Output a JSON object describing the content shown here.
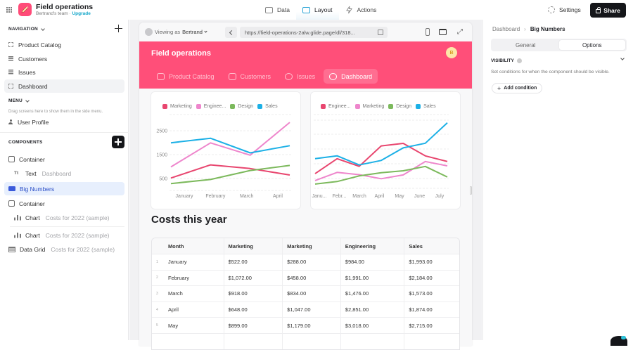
{
  "topbar": {
    "app_title": "Field operations",
    "team": "Bertrand's team",
    "separator": "·",
    "upgrade": "Upgrade",
    "tabs": [
      {
        "label": "Data",
        "icon": "table-icon"
      },
      {
        "label": "Layout",
        "icon": "layout-icon",
        "active": true
      },
      {
        "label": "Actions",
        "icon": "bolt-icon"
      }
    ],
    "settings": "Settings",
    "share": "Share"
  },
  "left": {
    "navigation_header": "NAVIGATION",
    "nav_items": [
      {
        "label": "Product Catalog",
        "icon": "dashed-square-icon"
      },
      {
        "label": "Customers",
        "icon": "list-icon"
      },
      {
        "label": "Issues",
        "icon": "list-icon"
      },
      {
        "label": "Dashboard",
        "icon": "dashed-square-icon",
        "selected": true
      }
    ],
    "menu_header": "MENU",
    "menu_hint": "Drag screens here to show them in the side menu.",
    "menu_items": [
      {
        "label": "User Profile",
        "icon": "user-icon"
      }
    ],
    "components_header": "COMPONENTS",
    "components": [
      {
        "label": "Container",
        "sub": "",
        "icon": "container-icon"
      },
      {
        "label": "Text",
        "sub": "Dashboard",
        "icon": "text-icon"
      },
      {
        "label": "Big Numbers",
        "sub": "",
        "icon": "big-numbers-icon",
        "selected": true
      },
      {
        "label": "Container",
        "sub": "",
        "icon": "container-icon"
      },
      {
        "label": "Chart",
        "sub": "Costs for 2022 (sample)",
        "icon": "chart-icon"
      },
      {
        "label": "Chart",
        "sub": "Costs for 2022 (sample)",
        "icon": "chart-icon"
      },
      {
        "label": "Data Grid",
        "sub": "Costs for 2022 (sample)",
        "icon": "grid-icon"
      }
    ]
  },
  "preview": {
    "viewing_as_prefix": "Viewing as",
    "viewing_as_user": "Bertrand",
    "url": "https://field-operations-2alw.glide.page/dl/318...",
    "app_title": "Field operations",
    "avatar_initial": "B",
    "app_tabs": [
      {
        "label": "Product Catalog",
        "icon": "book-icon"
      },
      {
        "label": "Customers",
        "icon": "inbox-icon"
      },
      {
        "label": "Issues",
        "icon": "pie-icon"
      },
      {
        "label": "Dashboard",
        "icon": "gauge-icon",
        "active": true
      }
    ],
    "section_title": "Costs this year",
    "table": {
      "columns": [
        "Month",
        "Marketing",
        "Marketing",
        "Engineering",
        "Sales"
      ],
      "rows": [
        {
          "n": "1",
          "cells": [
            "January",
            "$522.00",
            "$288.00",
            "$984.00",
            "$1,993.00"
          ]
        },
        {
          "n": "2",
          "cells": [
            "February",
            "$1,072.00",
            "$458.00",
            "$1,991.00",
            "$2,184.00"
          ]
        },
        {
          "n": "3",
          "cells": [
            "March",
            "$918.00",
            "$834.00",
            "$1,476.00",
            "$1,573.00"
          ]
        },
        {
          "n": "4",
          "cells": [
            "April",
            "$648.00",
            "$1,047.00",
            "$2,851.00",
            "$1,874.00"
          ]
        },
        {
          "n": "5",
          "cells": [
            "May",
            "$899.00",
            "$1,179.00",
            "$3,018.00",
            "$2,715.00"
          ]
        }
      ]
    }
  },
  "colors": {
    "brand": "#ff4f79",
    "marketing": "#e8466f",
    "engineering_pink": "#ee86cc",
    "design": "#7cb95c",
    "sales": "#1cb0e6",
    "accent_blue": "#3b5bdb"
  },
  "chart_data": [
    {
      "type": "line",
      "categories": [
        "January",
        "February",
        "March",
        "April"
      ],
      "series": [
        {
          "name": "Marketing",
          "color": "#e8466f",
          "values": [
            522,
            1072,
            918,
            648
          ]
        },
        {
          "name": "Enginee...",
          "color": "#ee86cc",
          "values": [
            984,
            1991,
            1476,
            2851
          ]
        },
        {
          "name": "Design",
          "color": "#7cb95c",
          "values": [
            288,
            458,
            834,
            1047
          ]
        },
        {
          "name": "Sales",
          "color": "#1cb0e6",
          "values": [
            1993,
            2184,
            1573,
            1874
          ]
        }
      ],
      "yticks": [
        500,
        1500,
        2500
      ],
      "legend_position": "top",
      "grid": true
    },
    {
      "type": "line",
      "categories": [
        "Janu...",
        "Febr...",
        "March",
        "April",
        "May",
        "June",
        "July"
      ],
      "series": [
        {
          "name": "Enginee...",
          "color": "#e8466f",
          "values": [
            984,
            1991,
            1476,
            2851,
            3018,
            2180,
            1800
          ]
        },
        {
          "name": "Marketing",
          "color": "#ee86cc",
          "values": [
            522,
            1072,
            918,
            648,
            899,
            1800,
            1510
          ]
        },
        {
          "name": "Design",
          "color": "#7cb95c",
          "values": [
            288,
            458,
            834,
            1047,
            1179,
            1470,
            760
          ]
        },
        {
          "name": "Sales",
          "color": "#1cb0e6",
          "values": [
            1993,
            2184,
            1573,
            1874,
            2715,
            3030,
            4400
          ]
        }
      ],
      "legend_position": "top",
      "grid": true
    }
  ],
  "right": {
    "breadcrumb": [
      "Dashboard",
      "Big Numbers"
    ],
    "tabs": [
      "General",
      "Options"
    ],
    "active_tab": "Options",
    "visibility_header": "VISIBILITY",
    "visibility_desc": "Set conditions for when the component should be visible.",
    "add_condition": "Add condition"
  }
}
